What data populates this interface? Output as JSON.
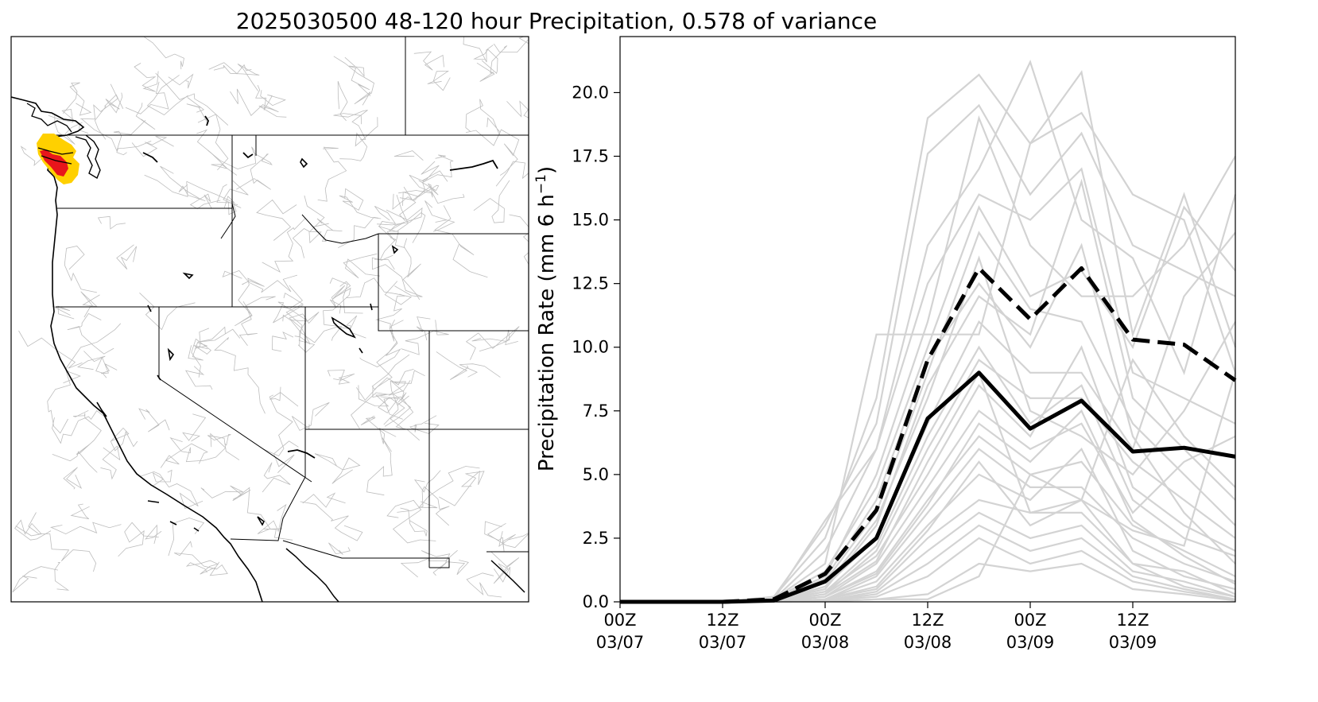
{
  "title": "2025030500 48-120 hour Precipitation, 0.578 of variance",
  "colors": {
    "members": "#d3d3d3",
    "mean": "#000000",
    "map_outline": "#000000",
    "basins": "#bdbdbd",
    "highlight_red": "#e8151b",
    "highlight_yellow": "#ffd000"
  },
  "map": {
    "name": "western-us-basin-map",
    "highlighted_regions": [
      "red",
      "yellow"
    ]
  },
  "chart_data": {
    "type": "line",
    "title": "",
    "xlabel": "",
    "ylabel_main": "Precipitation Rate (mm 6 h",
    "ylabel_sup": "−1",
    "ylabel_close": ")",
    "x_ticks": [
      {
        "line1": "00Z",
        "line2": "03/07"
      },
      {
        "line1": "12Z",
        "line2": "03/07"
      },
      {
        "line1": "00Z",
        "line2": "03/08"
      },
      {
        "line1": "12Z",
        "line2": "03/08"
      },
      {
        "line1": "00Z",
        "line2": "03/09"
      },
      {
        "line1": "12Z",
        "line2": "03/09"
      }
    ],
    "x_hours": [
      0,
      6,
      12,
      18,
      24,
      30,
      36,
      42,
      48,
      54,
      60,
      66,
      72
    ],
    "xlim": [
      0,
      72
    ],
    "ylim": [
      0,
      22.2
    ],
    "y_ticks": [
      0.0,
      2.5,
      5.0,
      7.5,
      10.0,
      12.5,
      15.0,
      17.5,
      20.0
    ],
    "grid": false,
    "series": [
      {
        "style": "dashed",
        "values": [
          0.0,
          0.0,
          0.0,
          0.1,
          1.1,
          3.6,
          9.5,
          13.1,
          11.1,
          13.1,
          10.3,
          10.1,
          8.7
        ]
      },
      {
        "style": "solid",
        "values": [
          0.0,
          0.0,
          0.0,
          0.05,
          0.8,
          2.5,
          7.2,
          9.0,
          6.8,
          7.9,
          5.9,
          6.05,
          5.7
        ]
      }
    ],
    "members": [
      [
        0,
        0,
        0,
        0.2,
        2.5,
        8.0,
        19.0,
        20.7,
        18.0,
        19.2,
        16.0,
        15.0,
        9.0
      ],
      [
        0,
        0,
        0,
        0.2,
        3.0,
        7.0,
        17.6,
        19.5,
        16.0,
        18.4,
        14.0,
        13.0,
        12.0
      ],
      [
        0,
        0,
        0,
        0.1,
        2.0,
        6.0,
        14.0,
        17.0,
        21.2,
        15.0,
        13.5,
        9.0,
        16.0
      ],
      [
        0,
        0,
        0,
        0.1,
        1.5,
        10.5,
        10.5,
        10.5,
        18.0,
        20.8,
        10.5,
        16.0,
        10.0
      ],
      [
        0,
        0,
        0,
        0.1,
        3.2,
        6.0,
        12.5,
        16.0,
        15.0,
        17.0,
        9.0,
        8.0,
        7.0
      ],
      [
        0,
        0,
        0,
        0.1,
        1.0,
        5.0,
        11.0,
        19.0,
        14.0,
        12.0,
        12.0,
        14.0,
        17.5
      ],
      [
        0,
        0,
        0,
        0.1,
        1.2,
        4.5,
        10.0,
        15.5,
        12.0,
        13.0,
        10.0,
        15.5,
        13.0
      ],
      [
        0,
        0,
        0,
        0.1,
        0.8,
        3.5,
        9.0,
        14.5,
        11.5,
        11.0,
        7.0,
        5.0,
        3.0
      ],
      [
        0,
        0,
        0,
        0.05,
        0.5,
        3.0,
        8.5,
        12.0,
        10.5,
        16.5,
        8.0,
        6.0,
        4.0
      ],
      [
        0,
        0,
        0,
        0.05,
        0.6,
        2.5,
        7.0,
        11.0,
        9.0,
        9.0,
        6.0,
        12.0,
        14.5
      ],
      [
        0,
        0,
        0,
        0.05,
        0.3,
        2.0,
        6.0,
        9.5,
        8.0,
        8.0,
        5.5,
        4.0,
        2.5
      ],
      [
        0,
        0,
        0,
        0.05,
        0.4,
        1.8,
        5.0,
        8.5,
        6.5,
        10.0,
        4.5,
        3.0,
        2.0
      ],
      [
        0,
        0,
        0,
        0.02,
        0.2,
        1.5,
        4.5,
        7.5,
        6.0,
        7.0,
        3.5,
        5.5,
        6.5
      ],
      [
        0,
        0,
        0,
        0.02,
        0.2,
        1.2,
        4.0,
        6.5,
        5.0,
        5.5,
        3.0,
        2.0,
        1.0
      ],
      [
        0,
        0,
        0,
        0.02,
        0.1,
        1.0,
        3.5,
        6.0,
        4.5,
        4.5,
        2.5,
        1.5,
        0.8
      ],
      [
        0,
        0,
        0,
        0.02,
        0.1,
        0.8,
        3.0,
        5.0,
        4.0,
        6.0,
        2.0,
        1.0,
        0.5
      ],
      [
        0,
        0,
        0,
        0.01,
        0.1,
        0.5,
        2.5,
        4.0,
        3.5,
        3.5,
        1.5,
        1.2,
        0.3
      ],
      [
        0,
        0,
        0,
        0.01,
        0.05,
        0.4,
        2.0,
        3.5,
        2.5,
        3.0,
        1.2,
        0.8,
        0.2
      ],
      [
        0,
        0,
        0,
        0.01,
        0.05,
        0.3,
        1.5,
        3.0,
        2.0,
        2.5,
        1.0,
        0.5,
        0.1
      ],
      [
        0,
        0,
        0,
        0.01,
        0.05,
        0.2,
        1.0,
        2.5,
        1.5,
        2.0,
        0.8,
        0.4,
        0.1
      ],
      [
        0,
        0,
        0,
        0.01,
        0.02,
        0.1,
        0.3,
        1.5,
        1.2,
        1.5,
        0.5,
        0.3,
        0.05
      ],
      [
        0,
        0,
        0,
        0.01,
        0.02,
        0.1,
        0.1,
        1.0,
        5.0,
        4.0,
        1.5,
        0.6,
        0.2
      ],
      [
        0,
        0,
        0,
        0.01,
        0.1,
        0.6,
        2.8,
        5.5,
        3.0,
        4.0,
        9.5,
        6.5,
        4.5
      ],
      [
        0,
        0,
        0,
        0.05,
        0.6,
        3.2,
        8.0,
        13.5,
        7.5,
        6.5,
        5.0,
        7.5,
        11.0
      ],
      [
        0,
        0,
        0,
        0.05,
        0.9,
        4.0,
        9.5,
        12.5,
        10.0,
        14.0,
        6.5,
        3.5,
        1.5
      ],
      [
        0,
        0,
        0,
        0.05,
        0.4,
        2.2,
        6.5,
        10.0,
        7.0,
        8.5,
        4.0,
        2.5,
        1.8
      ],
      [
        0,
        0,
        0,
        0.02,
        0.3,
        1.6,
        5.5,
        9.0,
        3.5,
        4.0,
        2.8,
        2.2,
        9.0
      ],
      [
        0,
        0,
        0,
        0.02,
        0.2,
        1.1,
        3.8,
        7.0,
        5.5,
        7.5,
        3.2,
        1.8,
        0.7
      ]
    ]
  }
}
